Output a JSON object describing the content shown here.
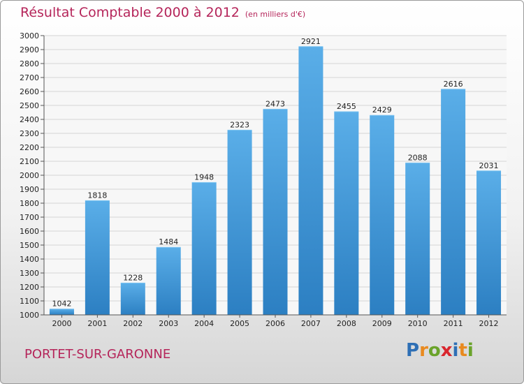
{
  "chart_data": {
    "type": "bar",
    "title": "Résultat Comptable 2000 à 2012",
    "subtitle": "(en milliers d'€)",
    "xlabel": "",
    "ylabel": "",
    "categories": [
      "2000",
      "2001",
      "2002",
      "2003",
      "2004",
      "2005",
      "2006",
      "2007",
      "2008",
      "2009",
      "2010",
      "2011",
      "2012"
    ],
    "values": [
      1042,
      1818,
      1228,
      1484,
      1948,
      2323,
      2473,
      2921,
      2455,
      2429,
      2088,
      2616,
      2031
    ],
    "ylim": [
      1000,
      3000
    ],
    "yticks": [
      "1000",
      "1100",
      "1200",
      "1300",
      "1400",
      "1500",
      "1600",
      "1700",
      "1800",
      "1900",
      "2000",
      "2100",
      "2200",
      "2300",
      "2400",
      "2500",
      "2600",
      "2700",
      "2800",
      "2900",
      "3000"
    ],
    "grid": true,
    "bar_color_top": "#5aaee8",
    "bar_color_bottom": "#2c7fc2"
  },
  "footer": {
    "commune": "PORTET-SUR-GARONNE",
    "brand": [
      "P",
      "r",
      "o",
      "x",
      "i",
      "t",
      "i"
    ]
  }
}
